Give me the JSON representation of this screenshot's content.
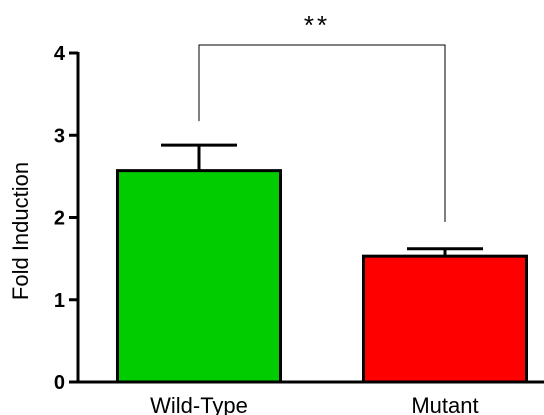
{
  "chart_data": {
    "type": "bar",
    "title": "",
    "xlabel": "",
    "ylabel": "Fold Induction",
    "ylim": [
      0,
      4
    ],
    "yticks": [
      "0",
      "1",
      "2",
      "3",
      "4"
    ],
    "categories": [
      "Wild-Type",
      "Mutant"
    ],
    "values": [
      2.57,
      1.53
    ],
    "errors": [
      0.31,
      0.09
    ],
    "colors": [
      "#00cc00",
      "#ff0000"
    ],
    "significance": {
      "label": "**",
      "between": [
        0,
        1
      ]
    },
    "grid": false
  }
}
